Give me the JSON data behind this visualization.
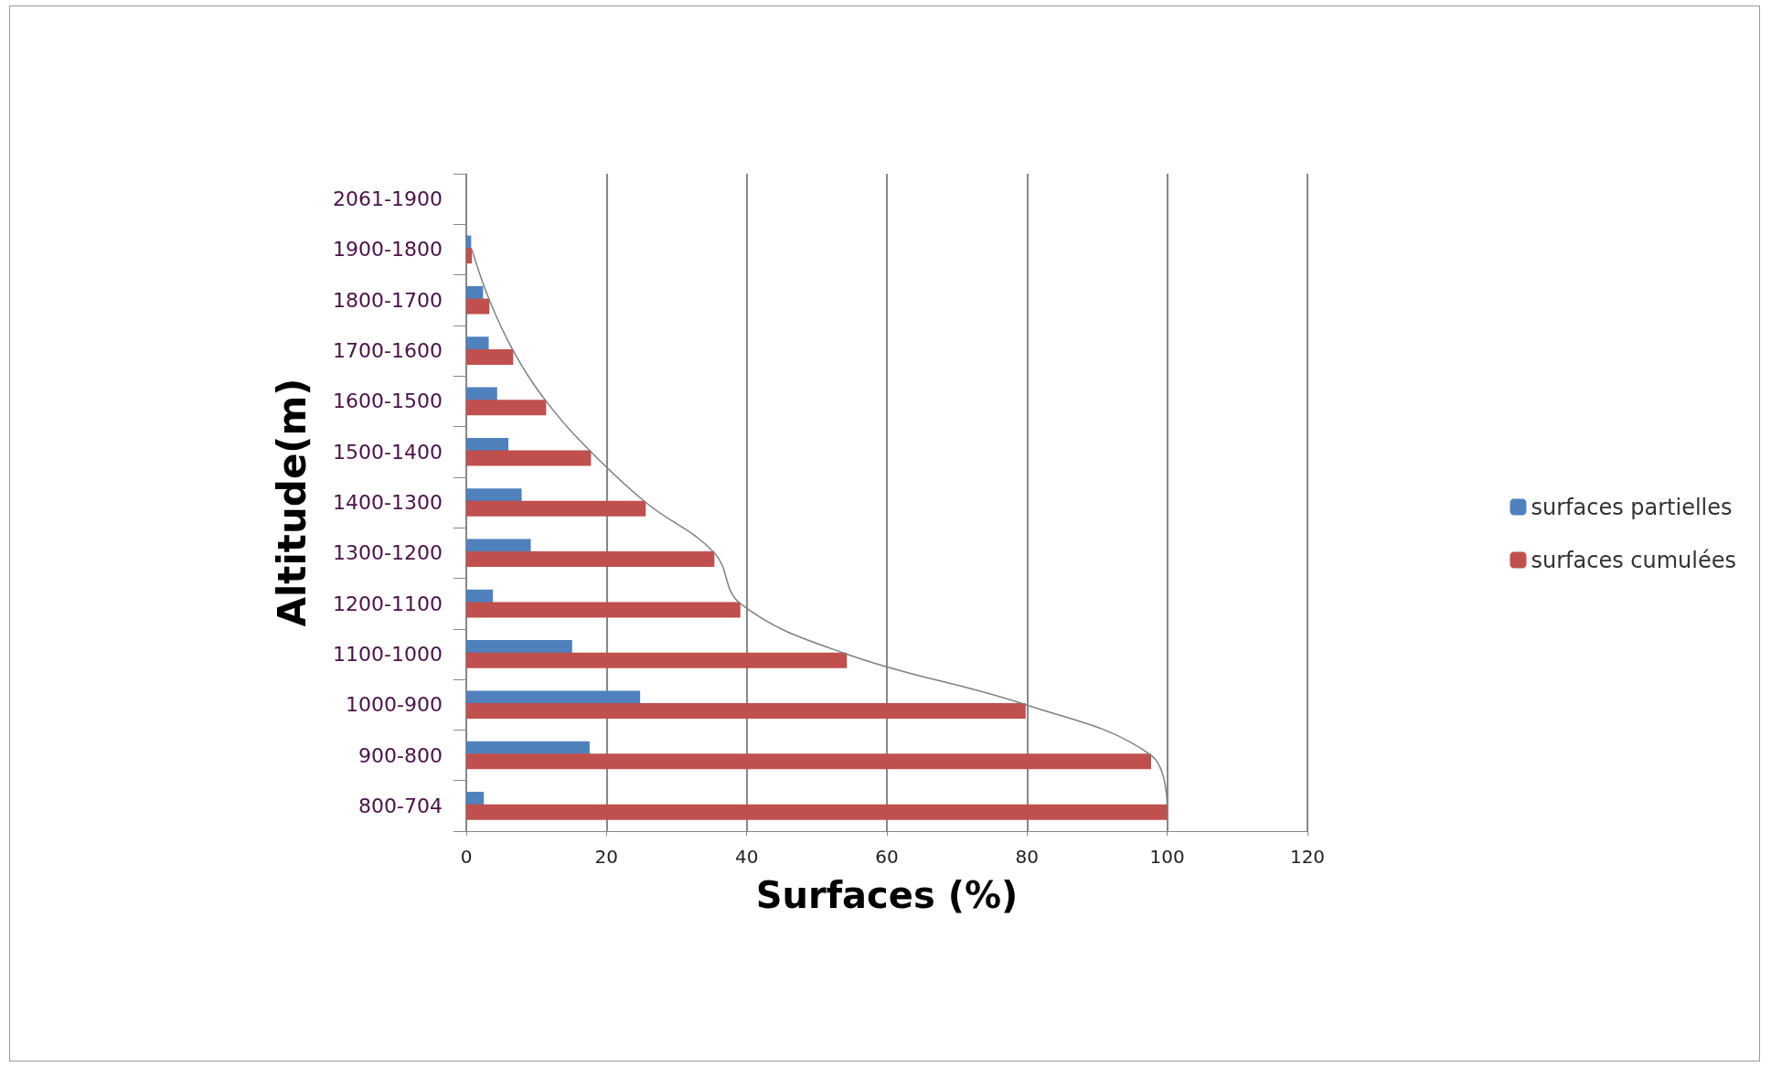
{
  "chart_data": {
    "type": "bar",
    "orientation": "horizontal",
    "xlabel": "Surfaces (%)",
    "ylabel": "Altitude(m)",
    "categories": [
      "2061-1900",
      "1900-1800",
      "1800-1700",
      "1700-1600",
      "1600-1500",
      "1500-1400",
      "1400-1300",
      "1300-1200",
      "1200-1100",
      "1100-1000",
      "1000-900",
      "900-800",
      "800-704"
    ],
    "series": [
      {
        "name": "surfaces partielles",
        "color": "#4f81bd",
        "values": [
          null,
          0.7,
          2.4,
          3.2,
          4.4,
          6.0,
          7.9,
          9.2,
          3.8,
          15.1,
          24.8,
          17.6,
          2.5
        ]
      },
      {
        "name": "surfaces cumulées",
        "color": "#c0504d",
        "values": [
          null,
          0.8,
          3.3,
          6.7,
          11.4,
          17.8,
          25.6,
          35.4,
          39.1,
          54.3,
          79.8,
          97.7,
          100
        ]
      },
      {
        "type": "line",
        "color": "#808080",
        "marker": "none",
        "values": [
          null,
          0.8,
          3.3,
          6.7,
          11.4,
          17.8,
          25.6,
          35.4,
          39.1,
          54.3,
          79.8,
          97.7,
          100
        ]
      }
    ],
    "xlim": [
      0,
      120
    ],
    "xticks": [
      0,
      20,
      40,
      60,
      80,
      100,
      120
    ],
    "grid": "x",
    "legend": "right"
  }
}
